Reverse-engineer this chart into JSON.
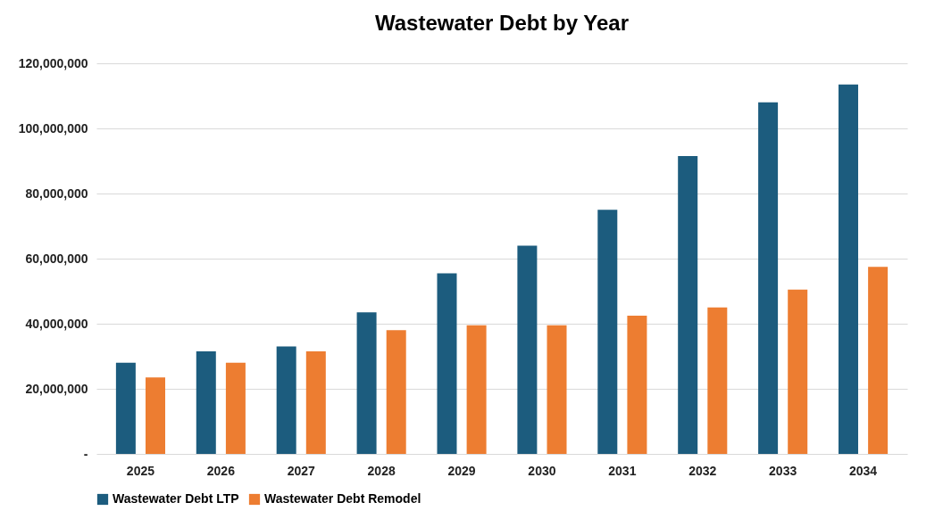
{
  "chart_data": {
    "type": "bar",
    "title": "Wastewater Debt by Year",
    "categories": [
      "2025",
      "2026",
      "2027",
      "2028",
      "2029",
      "2030",
      "2031",
      "2032",
      "2033",
      "2034"
    ],
    "series": [
      {
        "name": "Wastewater Debt LTP",
        "color": "#1c5c7e",
        "values": [
          28000000,
          31500000,
          33000000,
          43500000,
          55500000,
          64000000,
          75000000,
          91500000,
          108000000,
          113500000
        ]
      },
      {
        "name": "Wastewater Debt Remodel",
        "color": "#ed7d31",
        "values": [
          23500000,
          28000000,
          31500000,
          38000000,
          39500000,
          39500000,
          42500000,
          45000000,
          50500000,
          57500000
        ]
      }
    ],
    "ylim": [
      0,
      120000000
    ],
    "yticks": [
      {
        "value": 0,
        "label": "-"
      },
      {
        "value": 20000000,
        "label": "20,000,000"
      },
      {
        "value": 40000000,
        "label": "40,000,000"
      },
      {
        "value": 60000000,
        "label": "60,000,000"
      },
      {
        "value": 80000000,
        "label": "80,000,000"
      },
      {
        "value": 100000000,
        "label": "100,000,000"
      },
      {
        "value": 120000000,
        "label": "120,000,000"
      }
    ],
    "grid": "y",
    "legend": "bottom"
  }
}
